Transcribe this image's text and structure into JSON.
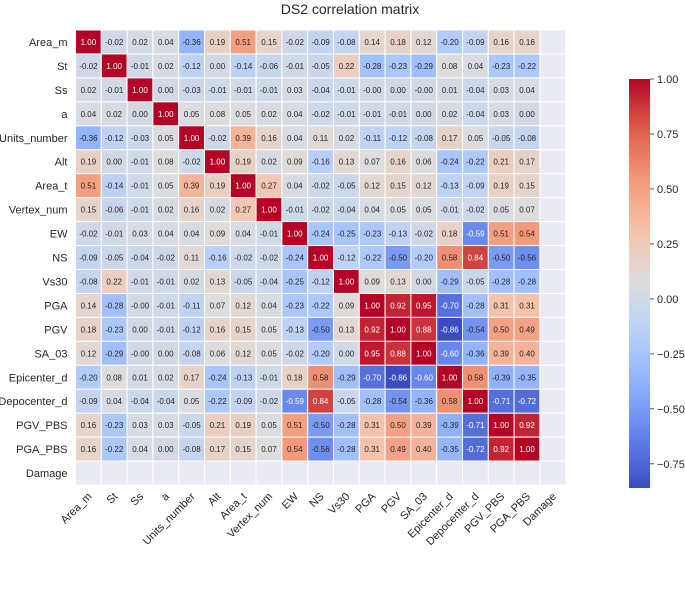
{
  "chart_data": {
    "type": "heatmap",
    "title": "DS2 correlation matrix",
    "xlabel": "",
    "ylabel": "",
    "colormap": "coolwarm",
    "vmin": -0.86,
    "vmax": 1.0,
    "colorbar_ticks": [
      1.0,
      0.75,
      0.5,
      0.25,
      0.0,
      -0.25,
      -0.5,
      -0.75
    ],
    "colorbar_tick_labels": [
      "1.00",
      "0.75",
      "0.50",
      "0.25",
      "0.00",
      "−0.25",
      "−0.50",
      "−0.75"
    ],
    "labels": [
      "Area_m",
      "St",
      "Ss",
      "a",
      "Units_number",
      "Alt",
      "Area_t",
      "Vertex_num",
      "EW",
      "NS",
      "Vs30",
      "PGA",
      "PGV",
      "SA_03",
      "Epicenter_d",
      "Depocenter_d",
      "PGV_PBS",
      "PGA_PBS",
      "Damage"
    ],
    "values": [
      [
        1.0,
        -0.02,
        0.02,
        0.04,
        -0.36,
        0.19,
        0.51,
        0.15,
        -0.02,
        -0.09,
        -0.08,
        0.14,
        0.18,
        0.12,
        -0.2,
        -0.09,
        0.16,
        0.16,
        null
      ],
      [
        -0.02,
        1.0,
        -0.01,
        0.02,
        -0.12,
        0.0,
        -0.14,
        -0.06,
        -0.01,
        -0.05,
        0.22,
        -0.28,
        -0.23,
        -0.29,
        0.08,
        0.04,
        -0.23,
        -0.22,
        null
      ],
      [
        0.02,
        -0.01,
        1.0,
        0.0,
        -0.03,
        -0.01,
        -0.01,
        -0.01,
        0.03,
        -0.04,
        -0.01,
        -0.0,
        0.0,
        -0.0,
        0.01,
        -0.04,
        0.03,
        0.04,
        null
      ],
      [
        0.04,
        0.02,
        0.0,
        1.0,
        0.05,
        0.08,
        0.05,
        0.02,
        0.04,
        -0.02,
        -0.01,
        -0.01,
        -0.01,
        0.0,
        0.02,
        -0.04,
        0.03,
        0.0,
        null
      ],
      [
        -0.36,
        -0.12,
        -0.03,
        0.05,
        1.0,
        -0.02,
        0.39,
        0.16,
        0.04,
        0.11,
        0.02,
        -0.11,
        -0.12,
        -0.08,
        0.17,
        0.05,
        -0.05,
        -0.08,
        null
      ],
      [
        0.19,
        0.0,
        -0.01,
        0.08,
        -0.02,
        1.0,
        0.19,
        0.02,
        0.09,
        -0.16,
        0.13,
        0.07,
        0.16,
        0.06,
        -0.24,
        -0.22,
        0.21,
        0.17,
        null
      ],
      [
        0.51,
        -0.14,
        -0.01,
        0.05,
        0.39,
        0.19,
        1.0,
        0.27,
        0.04,
        -0.02,
        -0.05,
        0.12,
        0.15,
        0.12,
        -0.13,
        -0.09,
        0.19,
        0.15,
        null
      ],
      [
        0.15,
        -0.06,
        -0.01,
        0.02,
        0.16,
        0.02,
        0.27,
        1.0,
        -0.01,
        -0.02,
        -0.04,
        0.04,
        0.05,
        0.05,
        -0.01,
        -0.02,
        0.05,
        0.07,
        null
      ],
      [
        -0.02,
        -0.01,
        0.03,
        0.04,
        0.04,
        0.09,
        0.04,
        -0.01,
        1.0,
        -0.24,
        -0.25,
        -0.23,
        -0.13,
        -0.02,
        0.18,
        -0.59,
        0.51,
        0.54,
        null
      ],
      [
        -0.09,
        -0.05,
        -0.04,
        -0.02,
        0.11,
        -0.16,
        -0.02,
        -0.02,
        -0.24,
        1.0,
        -0.12,
        -0.22,
        -0.5,
        -0.2,
        0.58,
        0.84,
        -0.5,
        -0.56,
        null
      ],
      [
        -0.08,
        0.22,
        -0.01,
        -0.01,
        0.02,
        0.13,
        -0.05,
        -0.04,
        -0.25,
        -0.12,
        1.0,
        0.09,
        0.13,
        0.0,
        -0.29,
        -0.05,
        -0.28,
        -0.28,
        null
      ],
      [
        0.14,
        -0.28,
        -0.0,
        -0.01,
        -0.11,
        0.07,
        0.12,
        0.04,
        -0.23,
        -0.22,
        0.09,
        1.0,
        0.92,
        0.95,
        -0.7,
        -0.28,
        0.31,
        0.31,
        null
      ],
      [
        0.18,
        -0.23,
        0.0,
        -0.01,
        -0.12,
        0.16,
        0.15,
        0.05,
        -0.13,
        -0.5,
        0.13,
        0.92,
        1.0,
        0.88,
        -0.86,
        -0.54,
        0.5,
        0.49,
        null
      ],
      [
        0.12,
        -0.29,
        -0.0,
        0.0,
        -0.08,
        0.06,
        0.12,
        0.05,
        -0.02,
        -0.2,
        0.0,
        0.95,
        0.88,
        1.0,
        -0.6,
        -0.36,
        0.39,
        0.4,
        null
      ],
      [
        -0.2,
        0.08,
        0.01,
        0.02,
        0.17,
        -0.24,
        -0.13,
        -0.01,
        0.18,
        0.58,
        -0.29,
        -0.7,
        -0.86,
        -0.6,
        1.0,
        0.58,
        -0.39,
        -0.35,
        null
      ],
      [
        -0.09,
        0.04,
        -0.04,
        -0.04,
        0.05,
        -0.22,
        -0.09,
        -0.02,
        -0.59,
        0.84,
        -0.05,
        -0.28,
        -0.54,
        -0.36,
        0.58,
        1.0,
        -0.71,
        -0.72,
        null
      ],
      [
        0.16,
        -0.23,
        0.03,
        0.03,
        -0.05,
        0.21,
        0.19,
        0.05,
        0.51,
        -0.5,
        -0.28,
        0.31,
        0.5,
        0.39,
        -0.39,
        -0.71,
        1.0,
        0.92,
        null
      ],
      [
        0.16,
        -0.22,
        0.04,
        0.0,
        -0.08,
        0.17,
        0.15,
        0.07,
        0.54,
        -0.56,
        -0.28,
        0.31,
        0.49,
        0.4,
        -0.35,
        -0.72,
        0.92,
        1.0,
        null
      ],
      [
        null,
        null,
        null,
        null,
        null,
        null,
        null,
        null,
        null,
        null,
        null,
        null,
        null,
        null,
        null,
        null,
        null,
        null,
        null
      ]
    ],
    "empty_cell_color": "#eaeaf2",
    "grid": false,
    "legend": "colorbar-right"
  }
}
